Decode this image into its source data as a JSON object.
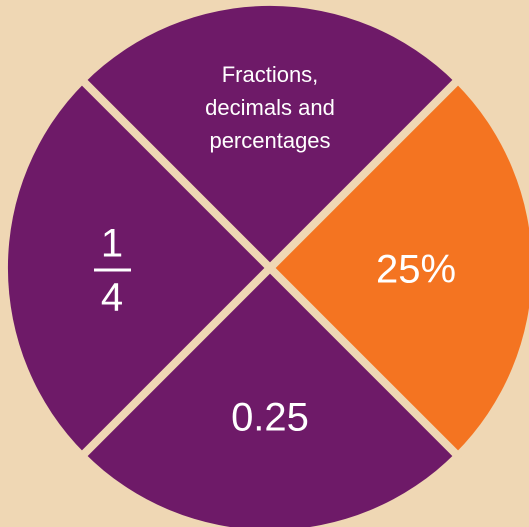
{
  "title": {
    "lines": [
      "Fractions,",
      "decimals and",
      "percentages"
    ]
  },
  "fraction": {
    "numerator": "1",
    "denominator": "4"
  },
  "decimal": "0.25",
  "percentage": "25%"
}
